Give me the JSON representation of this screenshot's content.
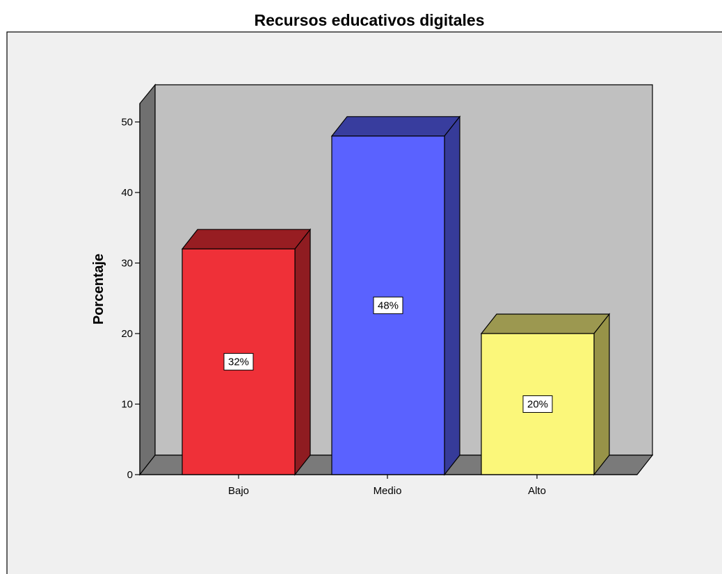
{
  "chart_data": {
    "type": "bar",
    "title": "Recursos educativos digitales",
    "xlabel": "",
    "ylabel": "Porcentaje",
    "categories": [
      "Bajo",
      "Medio",
      "Alto"
    ],
    "values": [
      32,
      48,
      20
    ],
    "data_labels": [
      "32%",
      "48%",
      "20%"
    ],
    "ylim": [
      0,
      55
    ],
    "yticks": [
      0,
      10,
      20,
      30,
      40,
      50
    ],
    "ytick_labels": [
      "0",
      "10",
      "20",
      "30",
      "40",
      "50"
    ],
    "bar_style": "3d",
    "grid": false,
    "legend": "none",
    "colors": {
      "bars_front": [
        "#ef3038",
        "#5a62ff",
        "#fbf77a"
      ],
      "bars_side": [
        "#8f1c21",
        "#363b99",
        "#979348"
      ],
      "bars_top": [
        "#971d22",
        "#383d9e",
        "#9c9850"
      ],
      "plot_back": "#c0c0c0",
      "plot_floor": "#7a7a7a",
      "plot_wall": "#707070",
      "outer_bg": "#f0f0f0"
    }
  }
}
